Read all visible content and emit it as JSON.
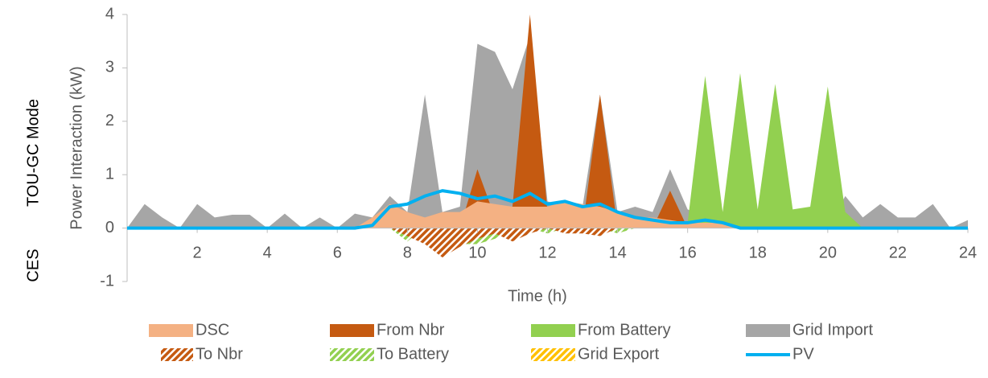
{
  "chart_data": {
    "type": "area",
    "side_labels": [
      "CES",
      "TOU-GC Mode"
    ],
    "x_label": "Time (h)",
    "y_label": "Power Interaction (kW)",
    "x": [
      0,
      0.5,
      1,
      1.5,
      2,
      2.5,
      3,
      3.5,
      4,
      4.5,
      5,
      5.5,
      6,
      6.5,
      7,
      7.5,
      8,
      8.5,
      9,
      9.5,
      10,
      10.5,
      11,
      11.5,
      12,
      12.5,
      13,
      13.5,
      14,
      14.5,
      15,
      15.5,
      16,
      16.5,
      17,
      17.5,
      18,
      18.5,
      19,
      19.5,
      20,
      20.5,
      21,
      21.5,
      22,
      22.5,
      23,
      23.5,
      24
    ],
    "xlim": [
      0,
      24
    ],
    "xticks": [
      2,
      4,
      6,
      8,
      10,
      12,
      14,
      16,
      18,
      20,
      22,
      24
    ],
    "ylim": [
      -1,
      4
    ],
    "yticks": [
      -1,
      0,
      1,
      2,
      3,
      4
    ],
    "series": [
      {
        "name": "DSC",
        "color": "#f4b183",
        "style": "area",
        "values": [
          0,
          0,
          0,
          0,
          0,
          0,
          0,
          0,
          0,
          0,
          0,
          0,
          0,
          0,
          0.2,
          0.45,
          0.3,
          0.2,
          0.3,
          0.3,
          0.5,
          0.45,
          0.4,
          0.4,
          0.4,
          0.5,
          0.45,
          0.4,
          0.3,
          0.2,
          0.2,
          0.15,
          0.1,
          0.1,
          0.1,
          0,
          0,
          0,
          0,
          0,
          0,
          0,
          0,
          0,
          0,
          0,
          0,
          0,
          0
        ]
      },
      {
        "name": "From Nbr",
        "color": "#c55a11",
        "style": "area",
        "values": [
          0,
          0,
          0,
          0,
          0,
          0,
          0,
          0,
          0,
          0,
          0,
          0,
          0,
          0,
          0,
          0,
          0.3,
          0,
          0,
          0,
          1.1,
          0.2,
          0.4,
          4.0,
          0.3,
          0,
          0,
          2.5,
          0,
          0,
          0,
          0.7,
          0,
          0,
          0,
          0,
          0,
          0,
          0,
          0,
          0,
          0,
          0,
          0,
          0,
          0,
          0,
          0,
          0
        ]
      },
      {
        "name": "From Battery",
        "color": "#92d050",
        "style": "area",
        "values": [
          0,
          0,
          0,
          0,
          0,
          0,
          0,
          0,
          0,
          0,
          0,
          0,
          0,
          0,
          0,
          0,
          0,
          0,
          0,
          0,
          0,
          0,
          0,
          0,
          0,
          0,
          0,
          0,
          0,
          0,
          0,
          0,
          0.1,
          2.85,
          0.3,
          2.9,
          0.35,
          2.7,
          0.35,
          0.4,
          2.65,
          0.3,
          0,
          0,
          0,
          0,
          0,
          0,
          0
        ]
      },
      {
        "name": "Grid Import",
        "color": "#a6a6a6",
        "style": "area",
        "values": [
          0,
          0.45,
          0.2,
          0,
          0.45,
          0.2,
          0.25,
          0.25,
          0,
          0.27,
          0,
          0.2,
          0,
          0.27,
          0.2,
          0.6,
          0.3,
          2.5,
          0.3,
          0.4,
          3.45,
          3.3,
          2.6,
          3.6,
          0.5,
          0.4,
          0.4,
          2.5,
          0.3,
          0.4,
          0.3,
          1.1,
          0.35,
          0.2,
          0.1,
          0,
          0,
          0,
          0,
          0,
          0,
          0.6,
          0.2,
          0.45,
          0.2,
          0.2,
          0.45,
          0,
          0.15
        ]
      },
      {
        "name": "To Nbr",
        "color": "#c55a11",
        "style": "hatch",
        "values": [
          0,
          0,
          0,
          0,
          0,
          0,
          0,
          0,
          0,
          0,
          0,
          0,
          0,
          0,
          0,
          0,
          -0.15,
          -0.3,
          -0.55,
          -0.35,
          -0.2,
          -0.1,
          -0.25,
          -0.1,
          0,
          -0.1,
          -0.1,
          -0.15,
          0,
          0,
          0,
          0,
          0,
          0,
          0,
          0,
          0,
          0,
          0,
          0,
          0,
          0,
          0,
          0,
          0,
          0,
          0,
          0,
          0
        ]
      },
      {
        "name": "To Battery",
        "color": "#92d050",
        "style": "hatch",
        "values": [
          0,
          0,
          0,
          0,
          0,
          0,
          0,
          0,
          0,
          0,
          0,
          0,
          0,
          0,
          0,
          0,
          -0.25,
          0,
          0,
          -0.3,
          -0.3,
          -0.2,
          0,
          0,
          -0.1,
          0,
          0,
          0,
          -0.1,
          0,
          0,
          0,
          0,
          0,
          0,
          0,
          0,
          0,
          0,
          0,
          0,
          0,
          0,
          0,
          0,
          0,
          0,
          0,
          0
        ]
      },
      {
        "name": "Grid Export",
        "color": "#ffc000",
        "style": "hatch",
        "values": [
          0,
          0,
          0,
          0,
          0,
          0,
          0,
          0,
          0,
          0,
          0,
          0,
          0,
          0,
          0,
          0,
          0,
          0,
          0,
          0,
          0,
          0,
          0,
          0,
          0,
          0,
          0,
          0,
          0,
          0,
          0,
          0,
          0,
          0,
          0,
          0,
          0,
          0,
          0,
          0,
          0,
          0,
          0,
          0,
          0,
          0,
          0,
          0,
          0
        ]
      },
      {
        "name": "PV",
        "color": "#00b0f0",
        "style": "line",
        "values": [
          0,
          0,
          0,
          0,
          0,
          0,
          0,
          0,
          0,
          0,
          0,
          0,
          0,
          0,
          0.05,
          0.4,
          0.45,
          0.6,
          0.7,
          0.65,
          0.55,
          0.6,
          0.5,
          0.65,
          0.45,
          0.5,
          0.4,
          0.45,
          0.3,
          0.2,
          0.15,
          0.1,
          0.1,
          0.15,
          0.1,
          0,
          0,
          0,
          0,
          0,
          0,
          0,
          0,
          0,
          0,
          0,
          0,
          0,
          0
        ]
      }
    ]
  }
}
